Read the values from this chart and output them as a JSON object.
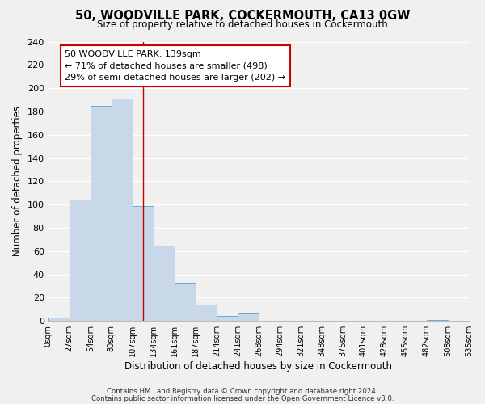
{
  "title": "50, WOODVILLE PARK, COCKERMOUTH, CA13 0GW",
  "subtitle": "Size of property relative to detached houses in Cockermouth",
  "xlabel": "Distribution of detached houses by size in Cockermouth",
  "ylabel": "Number of detached properties",
  "bar_labels": [
    "0sqm",
    "27sqm",
    "54sqm",
    "80sqm",
    "107sqm",
    "134sqm",
    "161sqm",
    "187sqm",
    "214sqm",
    "241sqm",
    "268sqm",
    "294sqm",
    "321sqm",
    "348sqm",
    "375sqm",
    "401sqm",
    "428sqm",
    "455sqm",
    "482sqm",
    "508sqm",
    "535sqm"
  ],
  "bar_values": [
    3,
    104,
    185,
    191,
    99,
    65,
    33,
    14,
    4,
    7,
    0,
    0,
    0,
    0,
    0,
    0,
    0,
    0,
    1,
    0
  ],
  "bar_color": "#c8d8e8",
  "bar_edge_color": "#6aaad4",
  "vline_x": 4.5,
  "vline_color": "#cc0000",
  "annotation_title": "50 WOODVILLE PARK: 139sqm",
  "annotation_line1": "← 71% of detached houses are smaller (498)",
  "annotation_line2": "29% of semi-detached houses are larger (202) →",
  "annotation_box_color": "#ffffff",
  "annotation_box_edge": "#cc0000",
  "ylim": [
    0,
    240
  ],
  "yticks": [
    0,
    20,
    40,
    60,
    80,
    100,
    120,
    140,
    160,
    180,
    200,
    220,
    240
  ],
  "footnote1": "Contains HM Land Registry data © Crown copyright and database right 2024.",
  "footnote2": "Contains public sector information licensed under the Open Government Licence v3.0.",
  "bg_color": "#f0f0f0",
  "plot_bg_color": "#f0f0f0",
  "grid_color": "#ffffff"
}
